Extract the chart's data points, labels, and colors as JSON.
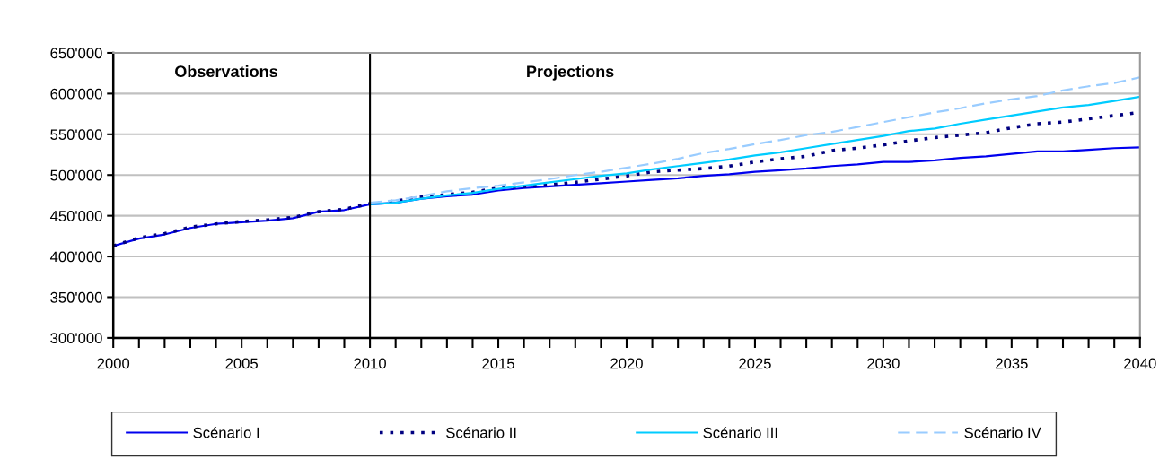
{
  "chart_data": {
    "type": "line",
    "annotations": [
      "Observations",
      "Projections"
    ],
    "series": [
      {
        "name": "Scénario I",
        "color": "#0000ee",
        "line_style": "solid",
        "x": [
          2000,
          2001,
          2002,
          2003,
          2004,
          2005,
          2006,
          2007,
          2008,
          2009,
          2010,
          2011,
          2012,
          2013,
          2014,
          2015,
          2016,
          2017,
          2018,
          2019,
          2020,
          2021,
          2022,
          2023,
          2024,
          2025,
          2026,
          2027,
          2028,
          2029,
          2030,
          2031,
          2032,
          2033,
          2034,
          2035,
          2036,
          2037,
          2038,
          2039,
          2040
        ],
        "values": [
          413000,
          422000,
          427000,
          435000,
          440000,
          442000,
          444000,
          447000,
          455000,
          457000,
          464000,
          466000,
          471000,
          474000,
          476000,
          481000,
          484000,
          486000,
          488000,
          490000,
          492000,
          494000,
          496000,
          499000,
          501000,
          504000,
          506000,
          508000,
          511000,
          513000,
          516000,
          516000,
          518000,
          521000,
          523000,
          526000,
          529000,
          529000,
          531000,
          533000,
          534000
        ]
      },
      {
        "name": "Scénario II",
        "color": "#000080",
        "line_style": "dotted",
        "x": [
          2000,
          2001,
          2002,
          2003,
          2004,
          2005,
          2006,
          2007,
          2008,
          2009,
          2010,
          2011,
          2012,
          2013,
          2014,
          2015,
          2016,
          2017,
          2018,
          2019,
          2020,
          2021,
          2022,
          2023,
          2024,
          2025,
          2026,
          2027,
          2028,
          2029,
          2030,
          2031,
          2032,
          2033,
          2034,
          2035,
          2036,
          2037,
          2038,
          2039,
          2040
        ],
        "values": [
          413000,
          423000,
          428000,
          436000,
          440000,
          443000,
          445000,
          448000,
          455000,
          458000,
          465000,
          468000,
          473000,
          476000,
          479000,
          484000,
          486000,
          488000,
          491000,
          495000,
          499000,
          504000,
          506000,
          508000,
          511000,
          516000,
          520000,
          523000,
          530000,
          533000,
          537000,
          542000,
          546000,
          549000,
          552000,
          558000,
          563000,
          565000,
          569000,
          573000,
          577000
        ]
      },
      {
        "name": "Scénario III",
        "color": "#00ccff",
        "line_style": "solid",
        "x": [
          2010,
          2011,
          2012,
          2013,
          2014,
          2015,
          2016,
          2017,
          2018,
          2019,
          2020,
          2021,
          2022,
          2023,
          2024,
          2025,
          2026,
          2027,
          2028,
          2029,
          2030,
          2031,
          2032,
          2033,
          2034,
          2035,
          2036,
          2037,
          2038,
          2039,
          2040
        ],
        "values": [
          464000,
          466000,
          471000,
          475000,
          478000,
          483000,
          487000,
          491000,
          495000,
          499000,
          502000,
          507000,
          511000,
          515000,
          519000,
          524000,
          528000,
          533000,
          538000,
          543000,
          548000,
          554000,
          557000,
          563000,
          568000,
          573000,
          578000,
          583000,
          586000,
          591000,
          596000
        ]
      },
      {
        "name": "Scénario IV",
        "color": "#99ccff",
        "line_style": "dashed",
        "x": [
          2010,
          2011,
          2012,
          2013,
          2014,
          2015,
          2016,
          2017,
          2018,
          2019,
          2020,
          2021,
          2022,
          2023,
          2024,
          2025,
          2026,
          2027,
          2028,
          2029,
          2030,
          2031,
          2032,
          2033,
          2034,
          2035,
          2036,
          2037,
          2038,
          2039,
          2040
        ],
        "values": [
          466000,
          469000,
          474000,
          480000,
          484000,
          487000,
          491000,
          495000,
          500000,
          504000,
          509000,
          514000,
          520000,
          527000,
          532000,
          538000,
          543000,
          549000,
          553000,
          559000,
          565000,
          571000,
          577000,
          582000,
          588000,
          593000,
          597000,
          604000,
          609000,
          613000,
          620000
        ]
      }
    ],
    "xlim": [
      2000,
      2040
    ],
    "xticks": [
      2000,
      {
        "value": 2001,
        "label": null
      },
      {
        "value": 2002,
        "label": null
      },
      {
        "value": 2003,
        "label": null
      },
      {
        "value": 2004,
        "label": null
      },
      2005,
      {
        "value": 2006,
        "label": null
      },
      {
        "value": 2007,
        "label": null
      },
      {
        "value": 2008,
        "label": null
      },
      {
        "value": 2009,
        "label": null
      },
      2010,
      {
        "value": 2011,
        "label": null
      },
      {
        "value": 2012,
        "label": null
      },
      {
        "value": 2013,
        "label": null
      },
      {
        "value": 2014,
        "label": null
      },
      2015,
      {
        "value": 2016,
        "label": null
      },
      {
        "value": 2017,
        "label": null
      },
      {
        "value": 2018,
        "label": null
      },
      {
        "value": 2019,
        "label": null
      },
      2020,
      {
        "value": 2021,
        "label": null
      },
      {
        "value": 2022,
        "label": null
      },
      {
        "value": 2023,
        "label": null
      },
      {
        "value": 2024,
        "label": null
      },
      2025,
      {
        "value": 2026,
        "label": null
      },
      {
        "value": 2027,
        "label": null
      },
      {
        "value": 2028,
        "label": null
      },
      {
        "value": 2029,
        "label": null
      },
      2030,
      {
        "value": 2031,
        "label": null
      },
      {
        "value": 2032,
        "label": null
      },
      {
        "value": 2033,
        "label": null
      },
      {
        "value": 2034,
        "label": null
      },
      2035,
      {
        "value": 2036,
        "label": null
      },
      {
        "value": 2037,
        "label": null
      },
      {
        "value": 2038,
        "label": null
      },
      {
        "value": 2039,
        "label": null
      },
      2040
    ],
    "ylim": [
      300000,
      650000
    ],
    "yticks": [
      {
        "value": 300000,
        "label": "300'000"
      },
      {
        "value": 350000,
        "label": "350'000"
      },
      {
        "value": 400000,
        "label": "400'000"
      },
      {
        "value": 450000,
        "label": "450'000"
      },
      {
        "value": 500000,
        "label": "500'000"
      },
      {
        "value": 550000,
        "label": "550'000"
      },
      {
        "value": 600000,
        "label": "600'000"
      },
      {
        "value": 650000,
        "label": "650'000"
      }
    ],
    "ref_lines": [
      {
        "axis": "x",
        "value": 2010,
        "color": "#000000"
      }
    ],
    "grid": "y",
    "legend": "bottom",
    "marker": "none"
  }
}
